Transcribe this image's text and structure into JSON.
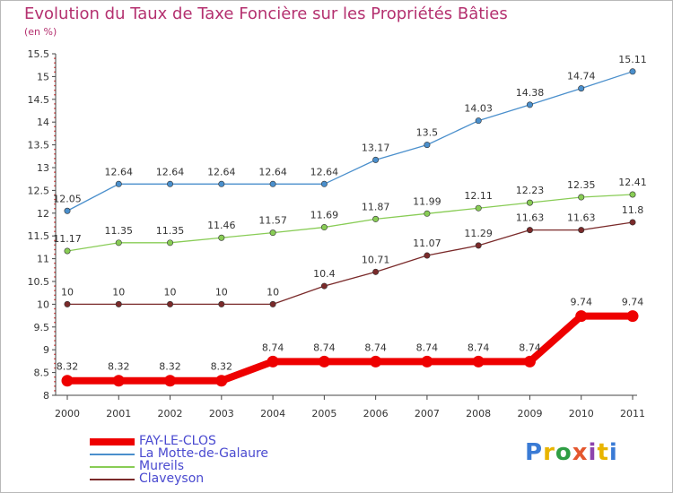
{
  "header": {
    "title": "Evolution du Taux de Taxe Foncière sur les Propriétés Bâties",
    "unit": "(en %)"
  },
  "logo": {
    "text": "Proxiti",
    "colors": [
      "#3a7bd5",
      "#e8b400",
      "#2f9e44",
      "#e4572e",
      "#8e44ad",
      "#e8b400",
      "#3a7bd5"
    ]
  },
  "chart_data": {
    "type": "line",
    "title": "Evolution du Taux de Taxe Foncière sur les Propriétés Bâties",
    "ylabel": "(en %)",
    "xlabel": "",
    "x": [
      "2000",
      "2001",
      "2002",
      "2003",
      "2004",
      "2005",
      "2006",
      "2007",
      "2008",
      "2009",
      "2010",
      "2011"
    ],
    "ylim": [
      8,
      15.5
    ],
    "yticks": [
      "8",
      "8.5",
      "9",
      "9.5",
      "10",
      "10.5",
      "11",
      "11.5",
      "12",
      "12.5",
      "13",
      "13.5",
      "14",
      "14.5",
      "15",
      "15.5"
    ],
    "grid": false,
    "legend_position": "bottom-left",
    "series": [
      {
        "name": "FAY-LE-CLOS",
        "color": "#ee0000",
        "values": [
          8.32,
          8.32,
          8.32,
          8.32,
          8.74,
          8.74,
          8.74,
          8.74,
          8.74,
          8.74,
          9.74,
          9.74
        ],
        "labels": [
          "8.32",
          "8.32",
          "8.32",
          "8.32",
          "8.74",
          "8.74",
          "8.74",
          "8.74",
          "8.74",
          "8.74",
          "9.74",
          "9.74"
        ]
      },
      {
        "name": "La Motte-de-Galaure",
        "color": "#4a8fcc",
        "values": [
          12.05,
          12.64,
          12.64,
          12.64,
          12.64,
          12.64,
          13.17,
          13.5,
          14.03,
          14.38,
          14.74,
          15.11
        ],
        "labels": [
          "12.05",
          "12.64",
          "12.64",
          "12.64",
          "12.64",
          "12.64",
          "13.17",
          "13.5",
          "14.03",
          "14.38",
          "14.74",
          "15.11"
        ]
      },
      {
        "name": "Mureils",
        "color": "#88cc55",
        "values": [
          11.17,
          11.35,
          11.35,
          11.46,
          11.57,
          11.69,
          11.87,
          11.99,
          12.11,
          12.23,
          12.35,
          12.41
        ],
        "labels": [
          "11.17",
          "11.35",
          "11.35",
          "11.46",
          "11.57",
          "11.69",
          "11.87",
          "11.99",
          "12.11",
          "12.23",
          "12.35",
          "12.41"
        ]
      },
      {
        "name": "Claveyson",
        "color": "#7a2a2a",
        "values": [
          10,
          10,
          10,
          10,
          10,
          10.4,
          10.71,
          11.07,
          11.29,
          11.63,
          11.63,
          11.8
        ],
        "labels": [
          "10",
          "10",
          "10",
          "10",
          "10",
          "10.4",
          "10.71",
          "11.07",
          "11.29",
          "11.63",
          "11.63",
          "11.8"
        ]
      }
    ]
  }
}
